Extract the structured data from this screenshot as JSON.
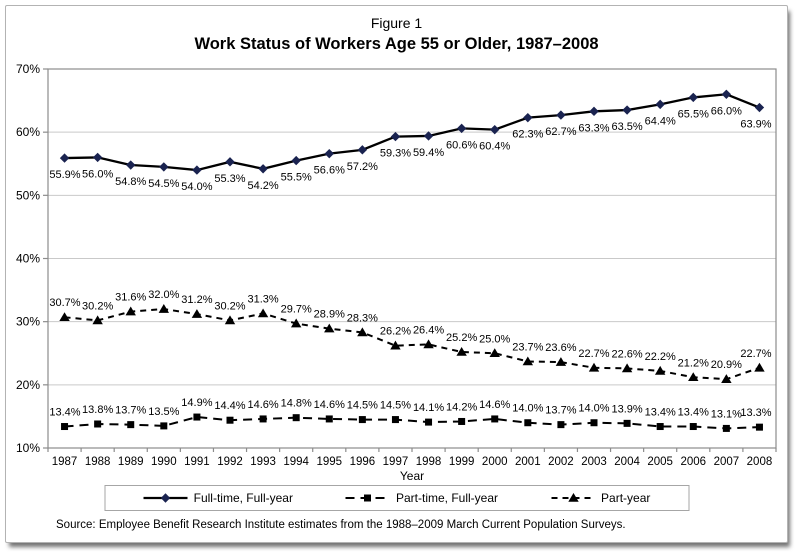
{
  "colors": {
    "accent_navy": "#1a2350",
    "series_black": "#000000",
    "gridline": "#c9c9c9",
    "plot_border": "#8c8c8c",
    "page_border": "#b3b3b3",
    "legend_border": "#a6a6a6"
  },
  "chart_data": {
    "type": "line",
    "title": "Figure 1",
    "subtitle": "Work Status of Workers Age 55 or Older, 1987–2008",
    "xlabel": "Year",
    "ylabel": "",
    "ylim": [
      10,
      70
    ],
    "ytick_step": 10,
    "ytick_labels": [
      "10%",
      "20%",
      "30%",
      "40%",
      "50%",
      "60%",
      "70%"
    ],
    "grid": true,
    "legend_position": "bottom",
    "categories": [
      "1987",
      "1988",
      "1989",
      "1990",
      "1991",
      "1992",
      "1993",
      "1994",
      "1995",
      "1996",
      "1997",
      "1998",
      "1999",
      "2000",
      "2001",
      "2002",
      "2003",
      "2004",
      "2005",
      "2006",
      "2007",
      "2008"
    ],
    "series": [
      {
        "name": "Full-time, Full-year",
        "marker": "diamond",
        "line_style": "solid",
        "color": "#1a2350",
        "label_placement": "below",
        "values": [
          55.9,
          56.0,
          54.8,
          54.5,
          54.0,
          55.3,
          54.2,
          55.5,
          56.6,
          57.2,
          59.3,
          59.4,
          60.6,
          60.4,
          62.3,
          62.7,
          63.3,
          63.5,
          64.4,
          65.5,
          66.0,
          63.9
        ]
      },
      {
        "name": "Part-time, Full-year",
        "marker": "square",
        "line_style": "dashed",
        "color": "#000000",
        "label_placement": "above",
        "values": [
          13.4,
          13.8,
          13.7,
          13.5,
          14.9,
          14.4,
          14.6,
          14.8,
          14.6,
          14.5,
          14.5,
          14.1,
          14.2,
          14.6,
          14.0,
          13.7,
          14.0,
          13.9,
          13.4,
          13.4,
          13.1,
          13.3
        ]
      },
      {
        "name": "Part-year",
        "marker": "triangle",
        "line_style": "dashed",
        "color": "#000000",
        "label_placement": "above",
        "values": [
          30.7,
          30.2,
          31.6,
          32.0,
          31.2,
          30.2,
          31.3,
          29.7,
          28.9,
          28.3,
          26.2,
          26.4,
          25.2,
          25.0,
          23.7,
          23.6,
          22.7,
          22.6,
          22.2,
          21.2,
          20.9,
          22.7
        ]
      }
    ],
    "source": "Source: Employee Benefit Research Institute estimates from the 1988–2009 March Current Population Surveys."
  }
}
